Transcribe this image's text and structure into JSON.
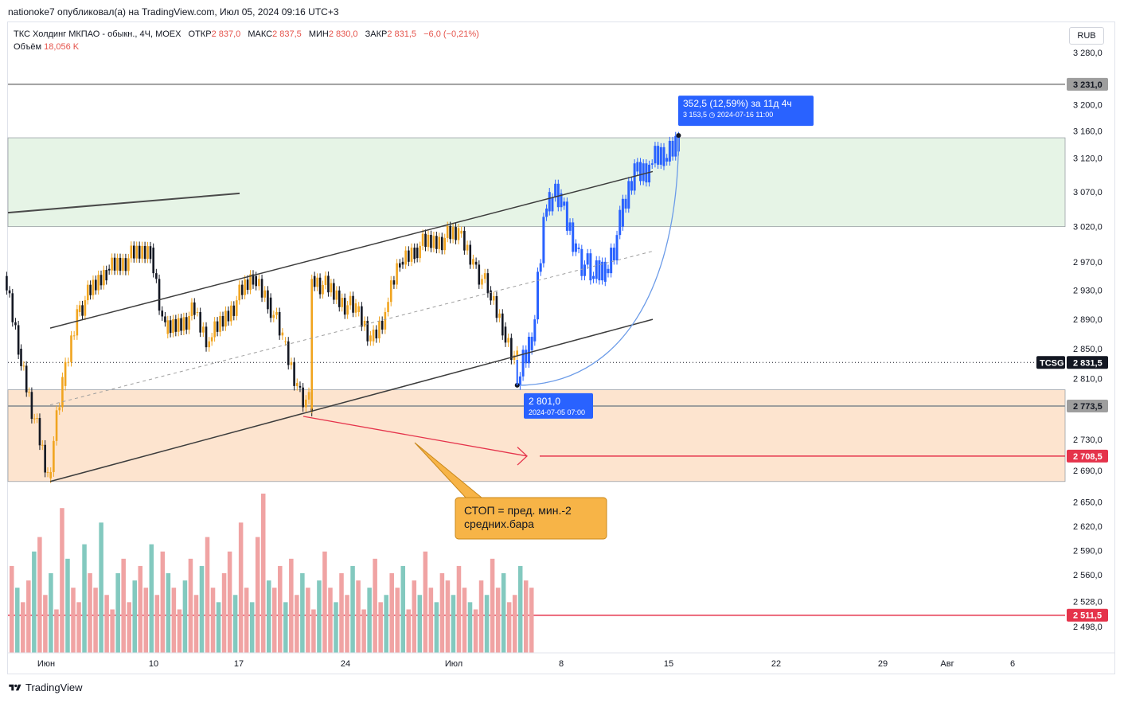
{
  "header": {
    "publisher_line": "nationoke7 опубликовал(а) на TradingView.com, Июл 05, 2024 09:16 UTC+3"
  },
  "legend": {
    "symbol": "ТКС Холдинг МКПАО - обыкн., 4Ч, MOEX",
    "open_label": "ОТКР",
    "open": "2 837,0",
    "high_label": "МАКС",
    "high": "2 837,5",
    "low_label": "МИН",
    "low": "2 830,0",
    "close_label": "ЗАКР",
    "close": "2 831,5",
    "change": "−6,0 (−0,21%)",
    "volume_label": "Объём",
    "volume": "18,056 K"
  },
  "currency_button": "RUB",
  "footer": {
    "brand": "TradingView"
  },
  "colors": {
    "up": "#f0a41f",
    "down": "#131722",
    "projection": "#2962ff",
    "vol_up": "#83c9bf",
    "vol_down": "#f0a3a3",
    "stop_line": "#e5334b",
    "green_zone": "#e6f4e6",
    "orange_zone": "#fde4cf",
    "callout": "#f7b447"
  },
  "chart_data": {
    "type": "candlestick",
    "symbol": "TCSG",
    "exchange": "MOEX",
    "timeframe": "4Ч",
    "currency": "RUB",
    "y_scale": "log",
    "ylim": [
      2480,
      3300
    ],
    "y_ticks": [
      "3 280,0",
      "3 200,0",
      "3 160,0",
      "3 120,0",
      "3 070,0",
      "3 020,0",
      "2 970,0",
      "2 930,0",
      "2 890,0",
      "2 850,0",
      "2 810,0",
      "2 730,0",
      "2 690,0",
      "2 650,0",
      "2 620,0",
      "2 590,0",
      "2 560,0",
      "2 528,0",
      "2 498,0"
    ],
    "x_ticks": [
      "Июн",
      "10",
      "17",
      "24",
      "Июл",
      "8",
      "15",
      "22",
      "29",
      "Авг",
      "6"
    ],
    "price_labels": {
      "level_top": "3 231,0",
      "current": "2 831,5",
      "current_tag": "TCSG",
      "level_mid": "2 773,5",
      "stop": "2 708,5",
      "level_low": "2 511,5"
    },
    "levels": {
      "resistance": 3231.0,
      "support": 2773.5,
      "stop": 2708.5,
      "bottom": 2511.5
    },
    "zones": [
      {
        "kind": "green",
        "from": 3020,
        "to": 3150
      },
      {
        "kind": "orange",
        "from": 2676,
        "to": 2795
      }
    ],
    "price_path": [
      [
        "31.05",
        2950
      ],
      [
        "01.06",
        2850
      ],
      [
        "03.06",
        2680
      ],
      [
        "04.06",
        2800
      ],
      [
        "05.06",
        2900
      ],
      [
        "07.06",
        2960
      ],
      [
        "10.06",
        2990
      ],
      [
        "11.06",
        2870
      ],
      [
        "13.06",
        2900
      ],
      [
        "14.06",
        2860
      ],
      [
        "17.06",
        2950
      ],
      [
        "18.06",
        2920
      ],
      [
        "19.06",
        2860
      ],
      [
        "20.06",
        2800
      ],
      [
        "21.06",
        2770
      ],
      [
        "21.06",
        2950
      ],
      [
        "24.06",
        2900
      ],
      [
        "25.06",
        2860
      ],
      [
        "26.06",
        2900
      ],
      [
        "27.06",
        2970
      ],
      [
        "28.06",
        2990
      ],
      [
        "01.07",
        3010
      ],
      [
        "02.07",
        2970
      ],
      [
        "03.07",
        2930
      ],
      [
        "04.07",
        2880
      ],
      [
        "05.07",
        2831.5
      ]
    ],
    "projection_path": [
      [
        "05.07",
        2801
      ],
      [
        "06.07",
        2860
      ],
      [
        "07.07",
        3070
      ],
      [
        "08.07",
        3050
      ],
      [
        "09.07",
        2990
      ],
      [
        "10.07",
        2950
      ],
      [
        "11.07",
        2960
      ],
      [
        "12.07",
        3020
      ],
      [
        "13.07",
        3100
      ],
      [
        "14.07",
        3110
      ],
      [
        "15.07",
        3120
      ],
      [
        "16.07",
        3153.5
      ]
    ],
    "measure": {
      "start_price": "2 801,0",
      "start_time": "2024-07-05 07:00",
      "end_label": "352,5 (12,59%) за 11д 4ч",
      "end_detail": "3 153,5",
      "end_time": "2024-07-16  11:00"
    },
    "volume": [
      12,
      9,
      7,
      10,
      14,
      16,
      8,
      11,
      6,
      20,
      13,
      9,
      7,
      15,
      11,
      9,
      18,
      8,
      6,
      11,
      13,
      7,
      10,
      12,
      9,
      15,
      8,
      14,
      11,
      9,
      6,
      10,
      13,
      8,
      12,
      16,
      9,
      7,
      11,
      14,
      8,
      18,
      9,
      7,
      16,
      22,
      10,
      9,
      12,
      7,
      13,
      8,
      11,
      9,
      6,
      10,
      14,
      9,
      7,
      11,
      8,
      12,
      10,
      6,
      9,
      13,
      7,
      8,
      11,
      9,
      12,
      6,
      10,
      8,
      14,
      9,
      7,
      11,
      10,
      8,
      12,
      9,
      7,
      6,
      10,
      8,
      13,
      9,
      11,
      7,
      8,
      12,
      10,
      9
    ],
    "callout": "СТОП = пред. мин.-2\nсредних.бара"
  }
}
